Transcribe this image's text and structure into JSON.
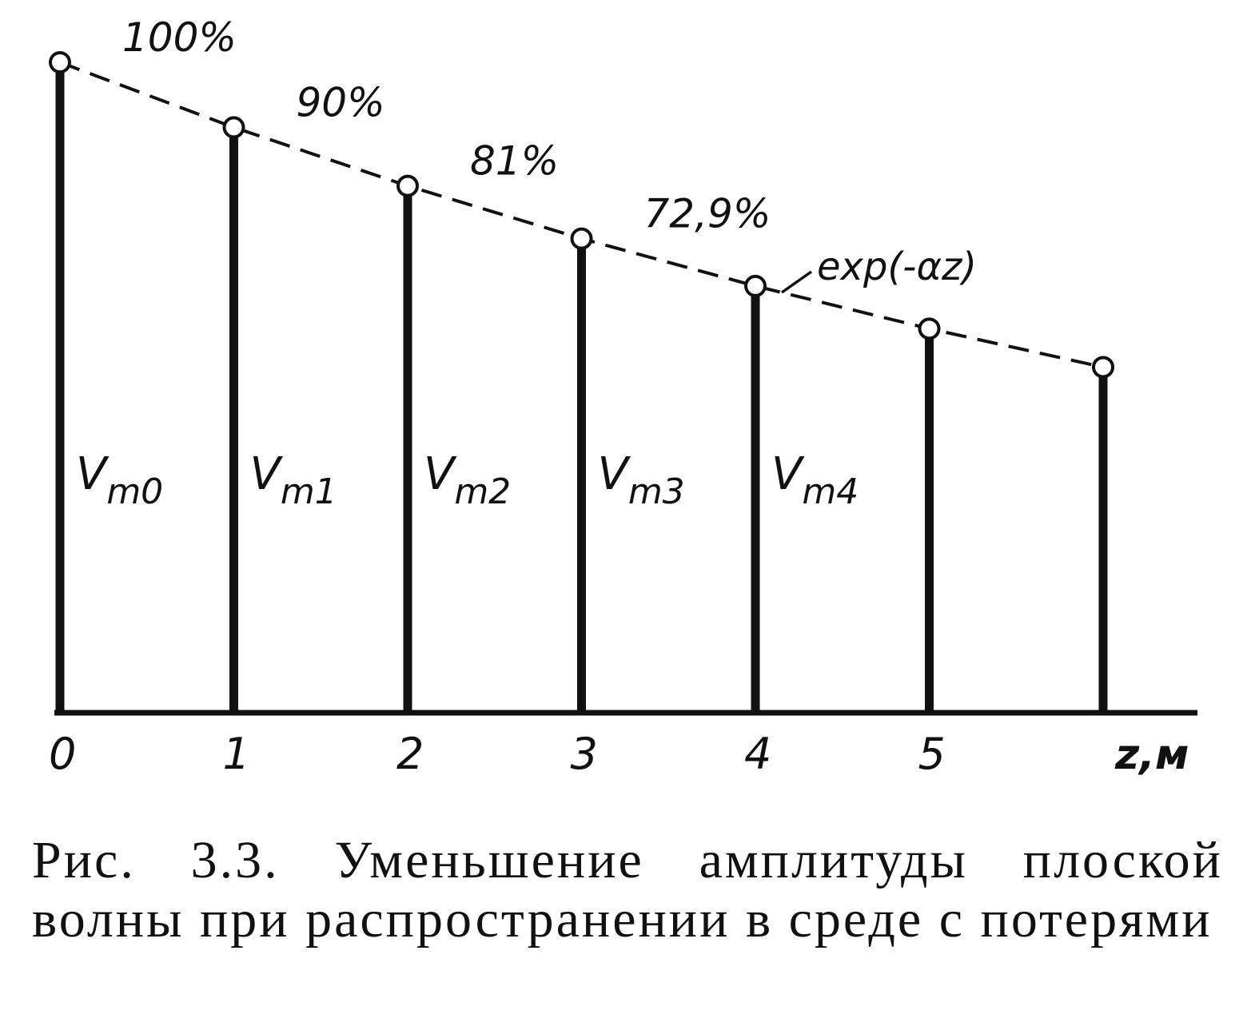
{
  "chart_data": {
    "type": "bar",
    "x": [
      0,
      1,
      2,
      3,
      4,
      5,
      6
    ],
    "values": [
      100,
      90,
      81,
      72.9,
      65.61,
      59.05,
      53.14
    ],
    "ylim": [
      0,
      100
    ],
    "xlabel": "z,м",
    "tick_labels": [
      "0",
      "1",
      "2",
      "3",
      "4",
      "5"
    ],
    "bar_labels": [
      {
        "main": "V",
        "sub": "m0"
      },
      {
        "main": "V",
        "sub": "m1"
      },
      {
        "main": "V",
        "sub": "m2"
      },
      {
        "main": "V",
        "sub": "m3"
      },
      {
        "main": "V",
        "sub": "m4"
      }
    ],
    "percent_labels": [
      "100%",
      "90%",
      "81%",
      "72,9%"
    ],
    "curve_label": "exp(-αz)",
    "grid": false,
    "curve_style": "dashed"
  },
  "caption": "Рис. 3.3. Уменьшение амплитуды плоской волны при распространении в среде с потерями"
}
